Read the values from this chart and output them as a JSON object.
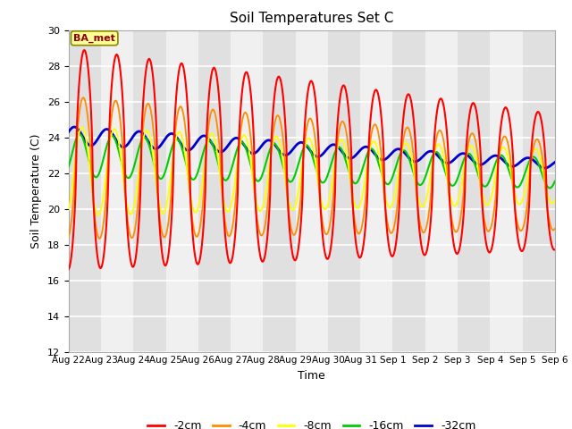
{
  "title": "Soil Temperatures Set C",
  "xlabel": "Time",
  "ylabel": "Soil Temperature (C)",
  "ylim": [
    12,
    30
  ],
  "yticks": [
    12,
    14,
    16,
    18,
    20,
    22,
    24,
    26,
    28,
    30
  ],
  "colors": {
    "-2cm": "#ff0000",
    "-4cm": "#ff8c00",
    "-8cm": "#ffff00",
    "-16cm": "#00cc00",
    "-32cm": "#0000cc"
  },
  "fig_bg": "#ffffff",
  "plot_bg": "#f0f0f0",
  "band_color": "#e0e0e0",
  "grid_color": "#ffffff",
  "n_points": 720
}
